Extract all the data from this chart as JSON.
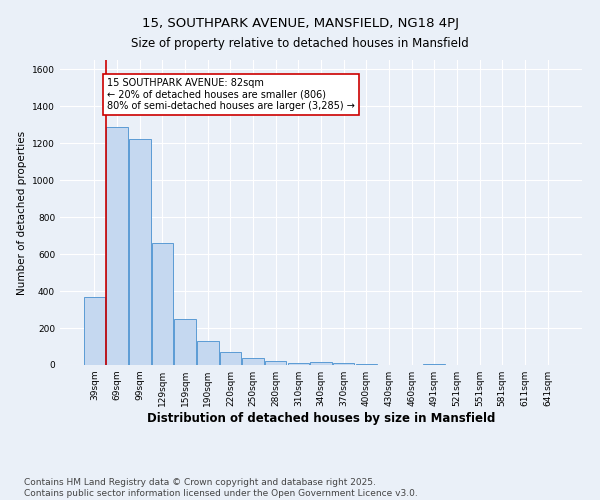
{
  "title": "15, SOUTHPARK AVENUE, MANSFIELD, NG18 4PJ",
  "subtitle": "Size of property relative to detached houses in Mansfield",
  "xlabel": "Distribution of detached houses by size in Mansfield",
  "ylabel": "Number of detached properties",
  "footer1": "Contains HM Land Registry data © Crown copyright and database right 2025.",
  "footer2": "Contains public sector information licensed under the Open Government Licence v3.0.",
  "categories": [
    "39sqm",
    "69sqm",
    "99sqm",
    "129sqm",
    "159sqm",
    "190sqm",
    "220sqm",
    "250sqm",
    "280sqm",
    "310sqm",
    "340sqm",
    "370sqm",
    "400sqm",
    "430sqm",
    "460sqm",
    "491sqm",
    "521sqm",
    "551sqm",
    "581sqm",
    "611sqm",
    "641sqm"
  ],
  "values": [
    370,
    1290,
    1220,
    660,
    250,
    130,
    70,
    40,
    20,
    10,
    15,
    10,
    5,
    0,
    0,
    8,
    0,
    0,
    0,
    0,
    0
  ],
  "bar_color": "#c5d8f0",
  "bar_edge_color": "#5b9bd5",
  "background_color": "#eaf0f8",
  "vline_x": 0.5,
  "vline_color": "#cc0000",
  "annotation_text": "15 SOUTHPARK AVENUE: 82sqm\n← 20% of detached houses are smaller (806)\n80% of semi-detached houses are larger (3,285) →",
  "annotation_box_edge": "#cc0000",
  "annotation_box_bg": "white",
  "ylim": [
    0,
    1650
  ],
  "yticks": [
    0,
    200,
    400,
    600,
    800,
    1000,
    1200,
    1400,
    1600
  ],
  "title_fontsize": 9.5,
  "subtitle_fontsize": 8.5,
  "xlabel_fontsize": 8.5,
  "ylabel_fontsize": 7.5,
  "tick_fontsize": 6.5,
  "annot_fontsize": 7,
  "footer_fontsize": 6.5
}
